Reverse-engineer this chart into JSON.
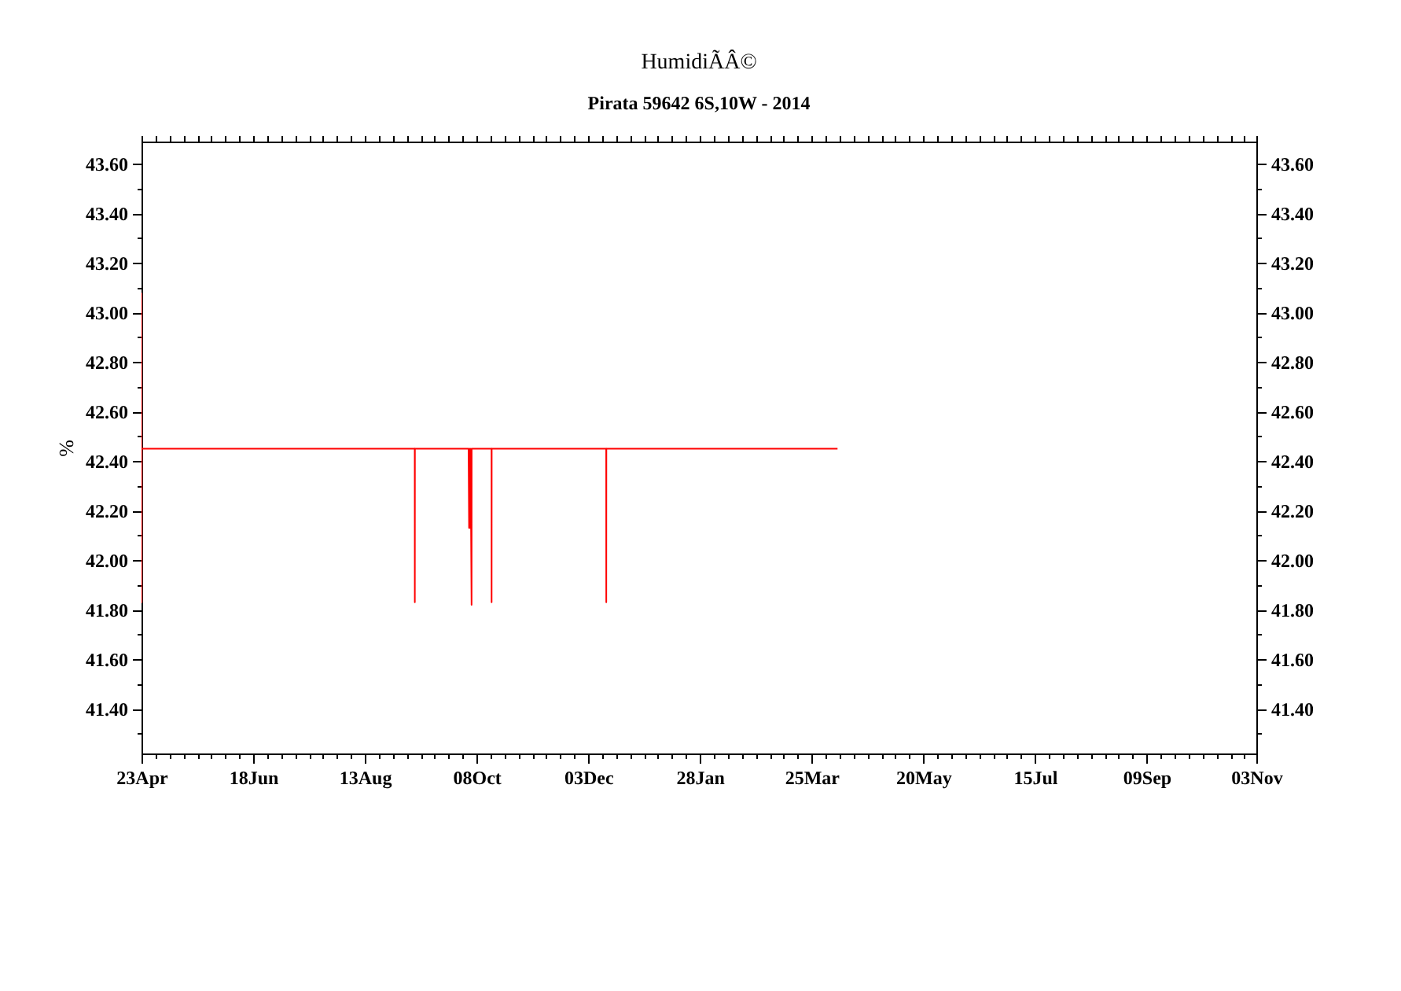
{
  "chart_data": {
    "type": "line",
    "title": "HumidiÃÂ©",
    "subtitle": "Pirata 59642 6S,10W - 2014",
    "ylabel": "%",
    "x": [
      "2014-04-23T00:00",
      "2014-04-23T01:00",
      "2014-04-23T02:00",
      "2014-09-07T00:00",
      "2014-09-07T01:00",
      "2014-09-07T02:00",
      "2014-10-04T00:00",
      "2014-10-04T06:00",
      "2014-10-04T12:00",
      "2014-10-04T18:00",
      "2014-10-05T00:00",
      "2014-10-05T06:00",
      "2014-10-05T12:00",
      "2014-10-05T13:00",
      "2014-10-15T12:00",
      "2014-10-15T13:00",
      "2014-10-15T14:00",
      "2014-12-12T00:00",
      "2014-12-12T01:00",
      "2014-12-12T02:00",
      "2015-04-07T00:00"
    ],
    "series": [
      {
        "color": "#ff0000",
        "values": [
          43.08,
          41.83,
          42.45,
          42.45,
          41.83,
          42.45,
          42.45,
          42.13,
          42.45,
          42.13,
          42.45,
          42.13,
          41.82,
          42.45,
          42.45,
          41.83,
          42.45,
          42.45,
          41.83,
          42.45,
          42.45
        ]
      }
    ],
    "xlim": [
      "2014-04-23",
      "2015-11-03"
    ],
    "xticks": [
      {
        "value": "2014-04-23",
        "label": "23Apr"
      },
      {
        "value": "2014-04-30",
        "label": null
      },
      {
        "value": "2014-05-07",
        "label": null
      },
      {
        "value": "2014-05-14",
        "label": null
      },
      {
        "value": "2014-05-21",
        "label": null
      },
      {
        "value": "2014-05-28",
        "label": null
      },
      {
        "value": "2014-06-04",
        "label": null
      },
      {
        "value": "2014-06-11",
        "label": null
      },
      {
        "value": "2014-06-18",
        "label": "18Jun"
      },
      {
        "value": "2014-06-25",
        "label": null
      },
      {
        "value": "2014-07-02",
        "label": null
      },
      {
        "value": "2014-07-09",
        "label": null
      },
      {
        "value": "2014-07-16",
        "label": null
      },
      {
        "value": "2014-07-23",
        "label": null
      },
      {
        "value": "2014-07-30",
        "label": null
      },
      {
        "value": "2014-08-06",
        "label": null
      },
      {
        "value": "2014-08-13",
        "label": "13Aug"
      },
      {
        "value": "2014-08-20",
        "label": null
      },
      {
        "value": "2014-08-27",
        "label": null
      },
      {
        "value": "2014-09-03",
        "label": null
      },
      {
        "value": "2014-09-10",
        "label": null
      },
      {
        "value": "2014-09-17",
        "label": null
      },
      {
        "value": "2014-09-24",
        "label": null
      },
      {
        "value": "2014-10-01",
        "label": null
      },
      {
        "value": "2014-10-08",
        "label": "08Oct"
      },
      {
        "value": "2014-10-15",
        "label": null
      },
      {
        "value": "2014-10-22",
        "label": null
      },
      {
        "value": "2014-10-29",
        "label": null
      },
      {
        "value": "2014-11-05",
        "label": null
      },
      {
        "value": "2014-11-12",
        "label": null
      },
      {
        "value": "2014-11-19",
        "label": null
      },
      {
        "value": "2014-11-26",
        "label": null
      },
      {
        "value": "2014-12-03",
        "label": "03Dec"
      },
      {
        "value": "2014-12-10",
        "label": null
      },
      {
        "value": "2014-12-17",
        "label": null
      },
      {
        "value": "2014-12-24",
        "label": null
      },
      {
        "value": "2014-12-31",
        "label": null
      },
      {
        "value": "2015-01-07",
        "label": null
      },
      {
        "value": "2015-01-14",
        "label": null
      },
      {
        "value": "2015-01-21",
        "label": null
      },
      {
        "value": "2015-01-28",
        "label": "28Jan"
      },
      {
        "value": "2015-02-04",
        "label": null
      },
      {
        "value": "2015-02-11",
        "label": null
      },
      {
        "value": "2015-02-18",
        "label": null
      },
      {
        "value": "2015-02-25",
        "label": null
      },
      {
        "value": "2015-03-04",
        "label": null
      },
      {
        "value": "2015-03-11",
        "label": null
      },
      {
        "value": "2015-03-18",
        "label": null
      },
      {
        "value": "2015-03-25",
        "label": "25Mar"
      },
      {
        "value": "2015-04-01",
        "label": null
      },
      {
        "value": "2015-04-08",
        "label": null
      },
      {
        "value": "2015-04-15",
        "label": null
      },
      {
        "value": "2015-04-22",
        "label": null
      },
      {
        "value": "2015-04-29",
        "label": null
      },
      {
        "value": "2015-05-06",
        "label": null
      },
      {
        "value": "2015-05-13",
        "label": null
      },
      {
        "value": "2015-05-20",
        "label": "20May"
      },
      {
        "value": "2015-05-27",
        "label": null
      },
      {
        "value": "2015-06-03",
        "label": null
      },
      {
        "value": "2015-06-10",
        "label": null
      },
      {
        "value": "2015-06-17",
        "label": null
      },
      {
        "value": "2015-06-24",
        "label": null
      },
      {
        "value": "2015-07-01",
        "label": null
      },
      {
        "value": "2015-07-08",
        "label": null
      },
      {
        "value": "2015-07-15",
        "label": "15Jul"
      },
      {
        "value": "2015-07-22",
        "label": null
      },
      {
        "value": "2015-07-29",
        "label": null
      },
      {
        "value": "2015-08-05",
        "label": null
      },
      {
        "value": "2015-08-12",
        "label": null
      },
      {
        "value": "2015-08-19",
        "label": null
      },
      {
        "value": "2015-08-26",
        "label": null
      },
      {
        "value": "2015-09-02",
        "label": null
      },
      {
        "value": "2015-09-09",
        "label": "09Sep"
      },
      {
        "value": "2015-09-16",
        "label": null
      },
      {
        "value": "2015-09-23",
        "label": null
      },
      {
        "value": "2015-09-30",
        "label": null
      },
      {
        "value": "2015-10-07",
        "label": null
      },
      {
        "value": "2015-10-14",
        "label": null
      },
      {
        "value": "2015-10-21",
        "label": null
      },
      {
        "value": "2015-10-28",
        "label": null
      },
      {
        "value": "2015-11-03",
        "label": "03Nov"
      }
    ],
    "ylim": [
      41.22,
      43.69
    ],
    "yticks": [
      {
        "value": 41.3,
        "label": null
      },
      {
        "value": 41.4,
        "label": "41.40"
      },
      {
        "value": 41.5,
        "label": null
      },
      {
        "value": 41.6,
        "label": "41.60"
      },
      {
        "value": 41.7,
        "label": null
      },
      {
        "value": 41.8,
        "label": "41.80"
      },
      {
        "value": 41.9,
        "label": null
      },
      {
        "value": 42.0,
        "label": "42.00"
      },
      {
        "value": 42.1,
        "label": null
      },
      {
        "value": 42.2,
        "label": "42.20"
      },
      {
        "value": 42.3,
        "label": null
      },
      {
        "value": 42.4,
        "label": "42.40"
      },
      {
        "value": 42.5,
        "label": null
      },
      {
        "value": 42.6,
        "label": "42.60"
      },
      {
        "value": 42.7,
        "label": null
      },
      {
        "value": 42.8,
        "label": "42.80"
      },
      {
        "value": 42.9,
        "label": null
      },
      {
        "value": 43.0,
        "label": "43.00"
      },
      {
        "value": 43.1,
        "label": null
      },
      {
        "value": 43.2,
        "label": "43.20"
      },
      {
        "value": 43.3,
        "label": null
      },
      {
        "value": 43.4,
        "label": "43.40"
      },
      {
        "value": 43.5,
        "label": null
      },
      {
        "value": 43.6,
        "label": "43.60"
      }
    ],
    "y2lim": [
      41.22,
      43.69
    ],
    "y2ticks": [
      {
        "value": 41.3,
        "label": null
      },
      {
        "value": 41.4,
        "label": "41.40"
      },
      {
        "value": 41.5,
        "label": null
      },
      {
        "value": 41.6,
        "label": "41.60"
      },
      {
        "value": 41.7,
        "label": null
      },
      {
        "value": 41.8,
        "label": "41.80"
      },
      {
        "value": 41.9,
        "label": null
      },
      {
        "value": 42.0,
        "label": "42.00"
      },
      {
        "value": 42.1,
        "label": null
      },
      {
        "value": 42.2,
        "label": "42.20"
      },
      {
        "value": 42.3,
        "label": null
      },
      {
        "value": 42.4,
        "label": "42.40"
      },
      {
        "value": 42.5,
        "label": null
      },
      {
        "value": 42.6,
        "label": "42.60"
      },
      {
        "value": 42.7,
        "label": null
      },
      {
        "value": 42.8,
        "label": "42.80"
      },
      {
        "value": 42.9,
        "label": null
      },
      {
        "value": 43.0,
        "label": "43.00"
      },
      {
        "value": 43.1,
        "label": null
      },
      {
        "value": 43.2,
        "label": "43.20"
      },
      {
        "value": 43.3,
        "label": null
      },
      {
        "value": 43.4,
        "label": "43.40"
      },
      {
        "value": 43.5,
        "label": null
      },
      {
        "value": 43.6,
        "label": "43.60"
      }
    ],
    "grid": false
  }
}
